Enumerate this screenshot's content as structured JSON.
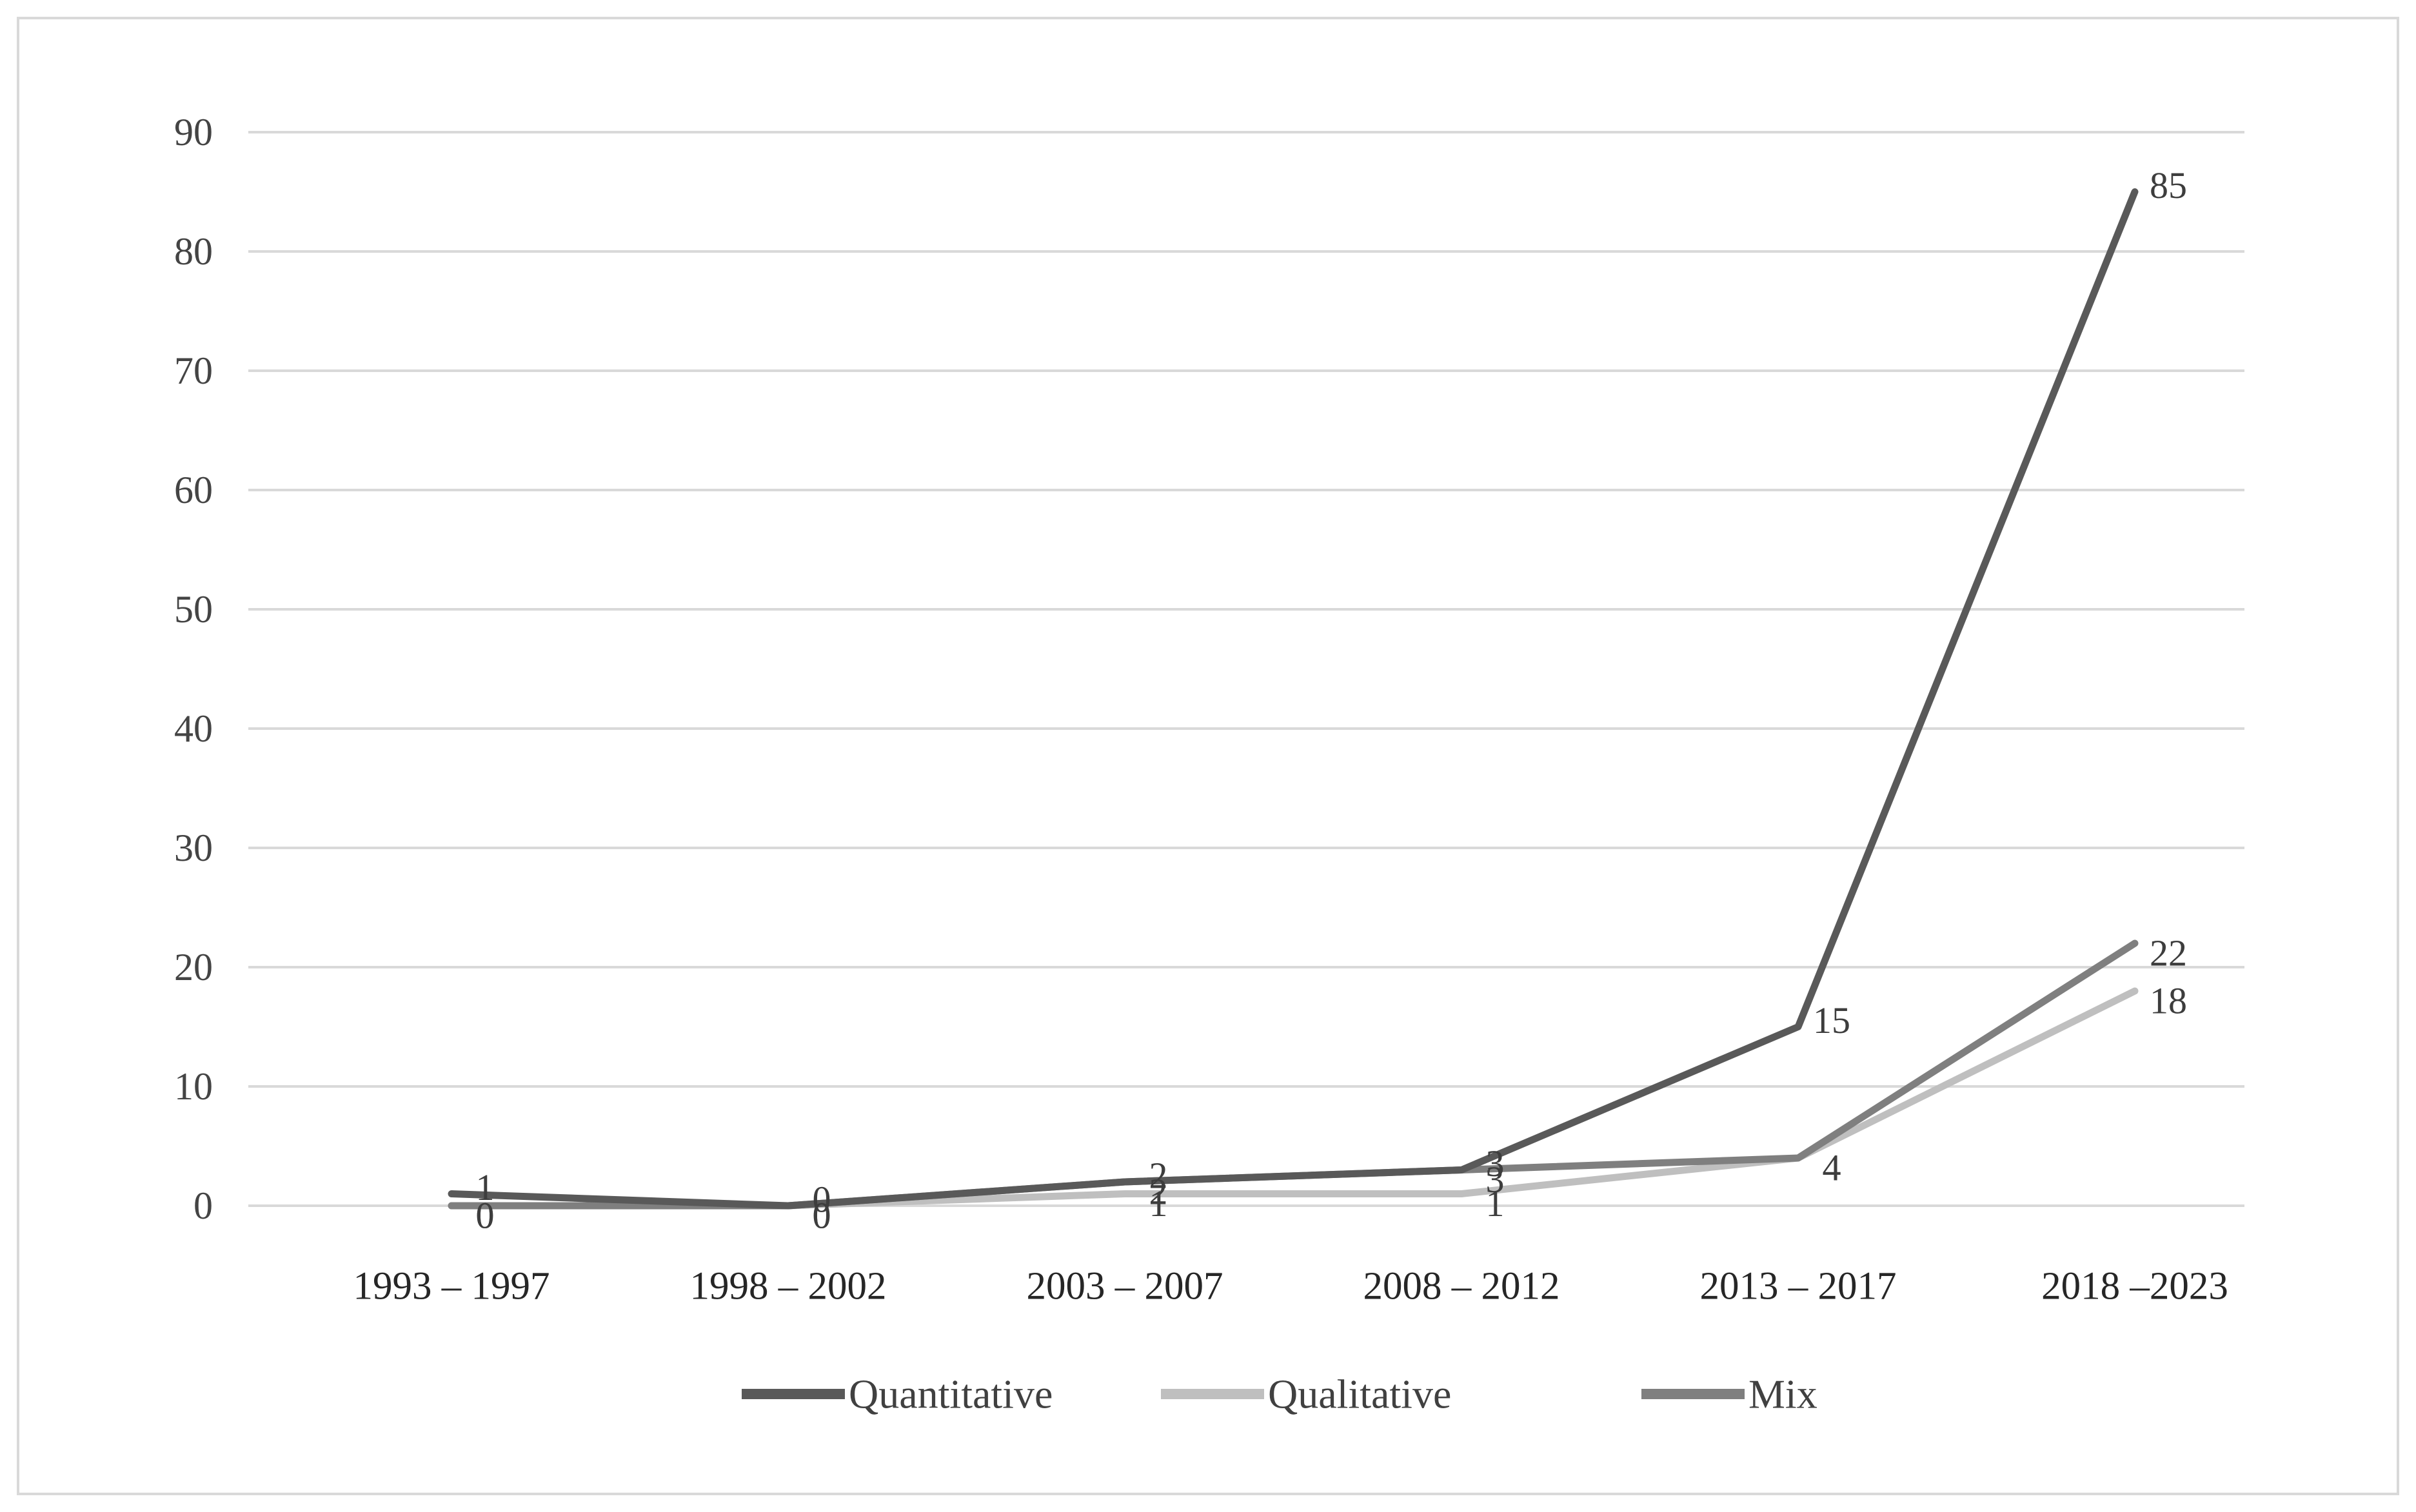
{
  "figure": {
    "background_color": "#ffffff",
    "border_color": "#d9d9d9"
  },
  "chart_data": {
    "type": "line",
    "title": "",
    "categories": [
      "1993 – 1997",
      "1998 – 2002",
      "2003 – 2007",
      "2008 – 2012",
      "2013 – 2017",
      "2018 –2023"
    ],
    "series": [
      {
        "name": "Quantitative",
        "color": "#595959",
        "values": [
          1,
          0,
          2,
          3,
          15,
          85
        ]
      },
      {
        "name": "Qualitative",
        "color": "#bfbfbf",
        "values": [
          0,
          0,
          1,
          1,
          4,
          18
        ]
      },
      {
        "name": "Mix",
        "color": "#7f7f7f",
        "values": [
          0,
          0,
          2,
          3,
          4,
          22
        ]
      }
    ],
    "y_ticks": [
      0,
      10,
      20,
      30,
      40,
      50,
      60,
      70,
      80,
      90
    ],
    "ylim": [
      0,
      90
    ],
    "xlabel": "",
    "ylabel": "",
    "grid": "horizontal",
    "gridline_color": "#d9d9d9",
    "y_tick_color": "#444444",
    "x_tick_color": "#262626",
    "data_label_color": "#3d3d3d",
    "legend_text_color": "#404040",
    "legend_position": "bottom",
    "data_labels": "values shown at each point; overlapping at low values"
  }
}
